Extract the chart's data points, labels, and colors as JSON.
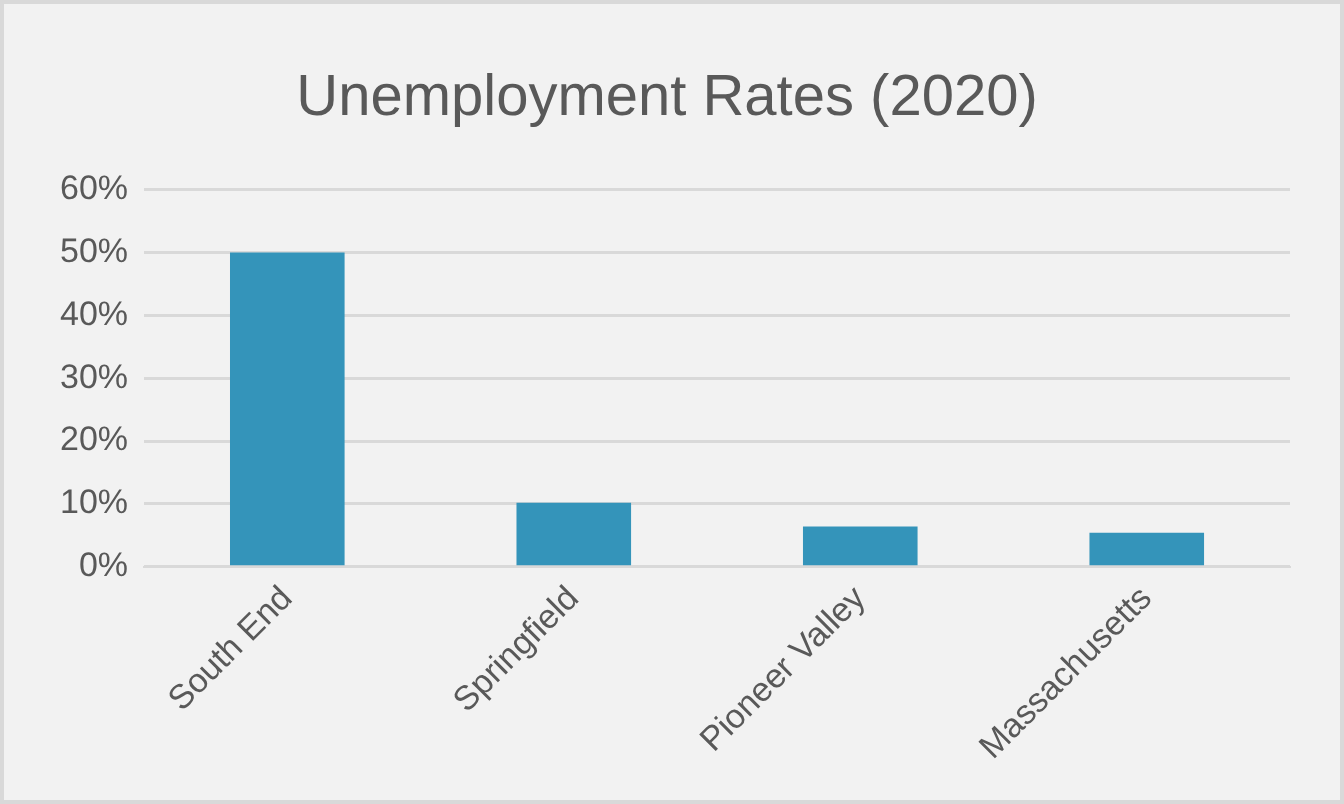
{
  "chart_data": {
    "type": "bar",
    "title": "Unemployment Rates (2020)",
    "categories": [
      "South End",
      "Springfield",
      "Pioneer Valley",
      "Massachusetts"
    ],
    "values": [
      50,
      10.2,
      6.4,
      5.4
    ],
    "color": "#3494ba",
    "ylim": [
      0,
      60
    ],
    "yticks": [
      {
        "value": 0,
        "label": "0%"
      },
      {
        "value": 10,
        "label": "10%"
      },
      {
        "value": 20,
        "label": "20%"
      },
      {
        "value": 30,
        "label": "30%"
      },
      {
        "value": 40,
        "label": "40%"
      },
      {
        "value": 50,
        "label": "50%"
      },
      {
        "value": 60,
        "label": "60%"
      }
    ],
    "grid": "y",
    "legend": false
  }
}
